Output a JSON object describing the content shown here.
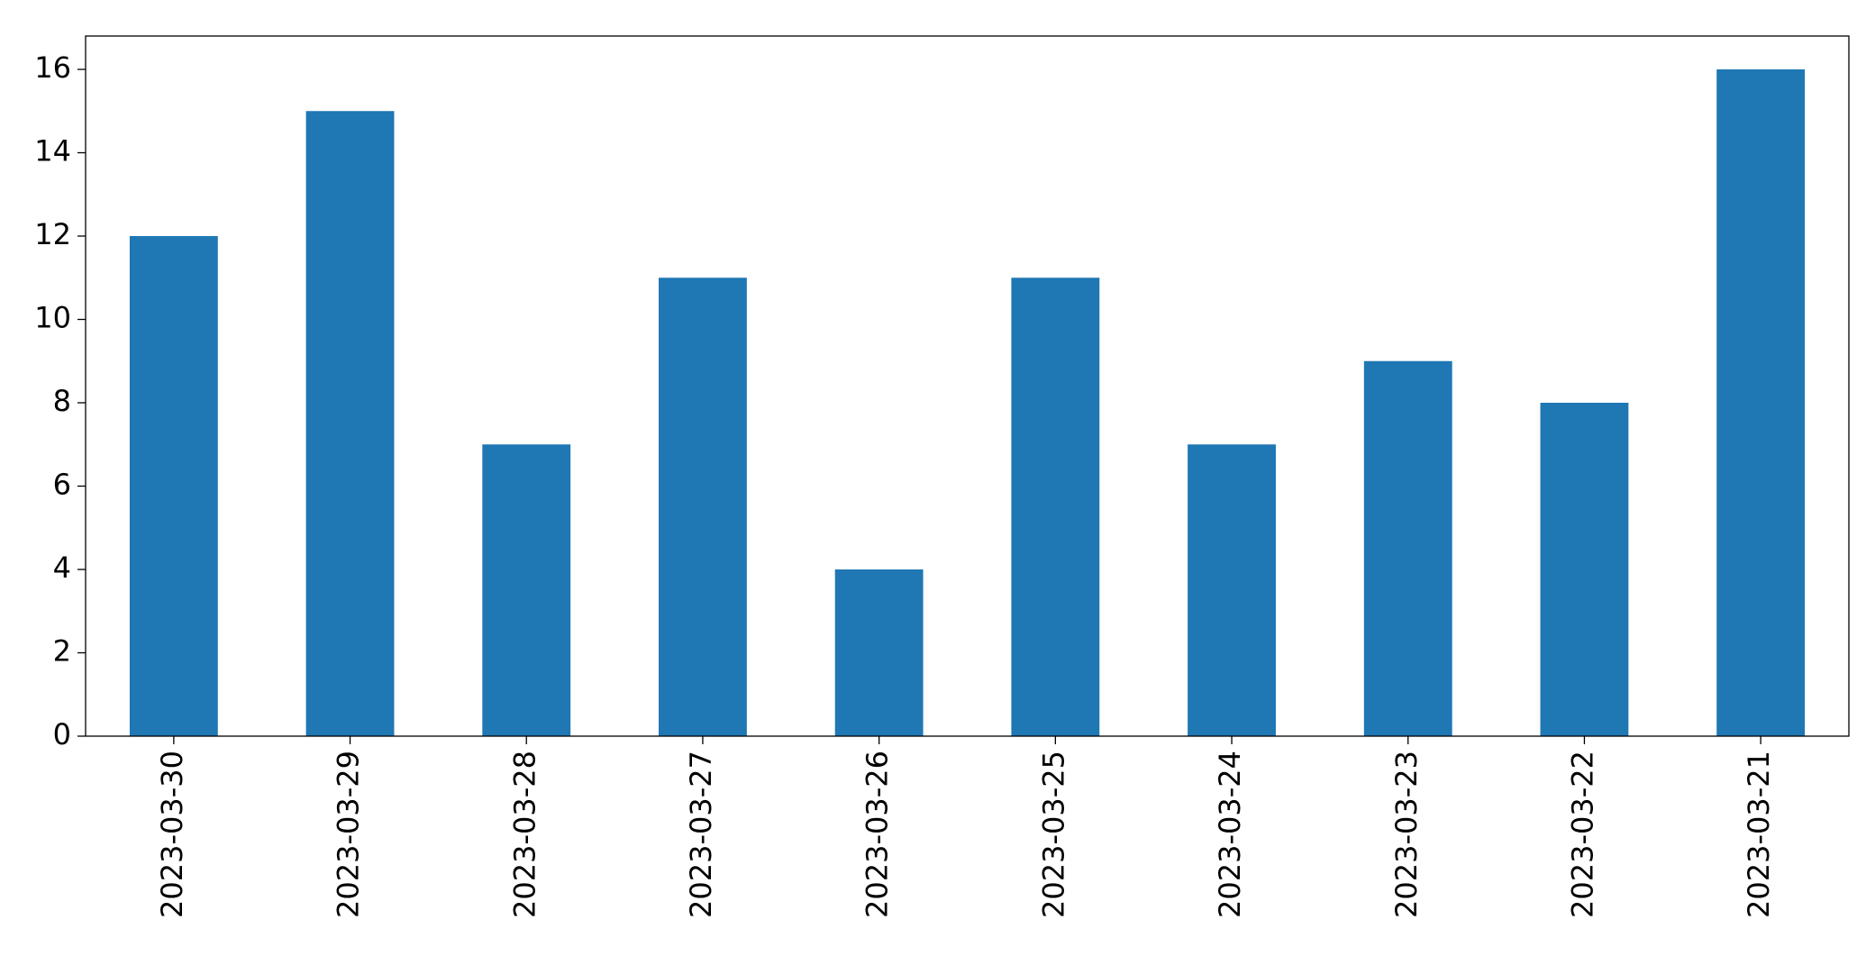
{
  "chart_data": {
    "type": "bar",
    "categories": [
      "2023-03-30",
      "2023-03-29",
      "2023-03-28",
      "2023-03-27",
      "2023-03-26",
      "2023-03-25",
      "2023-03-24",
      "2023-03-23",
      "2023-03-22",
      "2023-03-21"
    ],
    "values": [
      12,
      15,
      7,
      11,
      4,
      11,
      7,
      9,
      8,
      16
    ],
    "color": "#1f77b4",
    "ylim": [
      0,
      16.8
    ],
    "yticks": [
      0,
      2,
      4,
      6,
      8,
      10,
      12,
      14,
      16
    ],
    "grid": false
  }
}
